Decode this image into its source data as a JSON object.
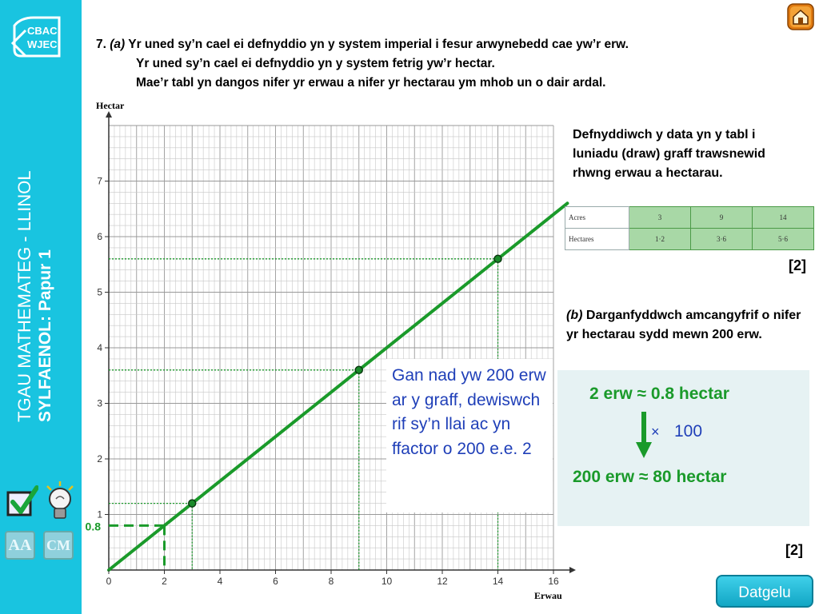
{
  "sidebar": {
    "logo_line1": "CBAC",
    "logo_line2": "WJEC",
    "title": "TGAU MATHEMATEG - LLINOL",
    "subtitle": "SYLFAENOL: Papur 1",
    "icons": [
      "checkbox-tick-icon",
      "lightbulb-icon",
      "aa-icon",
      "cm-icon"
    ],
    "icon_aa": "AA",
    "icon_cm": "CM"
  },
  "question": {
    "number": "7.",
    "part_a": "(a)",
    "line1": "Yr uned sy’n cael ei defnyddio yn y system imperial i fesur arwynebedd cae yw’r erw.",
    "line2": "Yr uned sy’n cael ei defnyddio yn y system fetrig yw’r hectar.",
    "line3": "Mae’r tabl yn dangos nifer yr erwau a nifer yr hectarau ym mhob un o dair ardal."
  },
  "instruction": "Defnyddiwch y data yn y tabl i luniadu (draw) graff trawsnewid rhwng erwau a hectarau.",
  "table": {
    "row1_label": "Acres",
    "row1_values": [
      "3",
      "9",
      "14"
    ],
    "row2_label": "Hectares",
    "row2_values": [
      "1·2",
      "3·6",
      "5·6"
    ]
  },
  "marks_a": "[2]",
  "part_b": {
    "label": "(b)",
    "text": "Darganfyddwch amcangyfrif o nifer yr hectarau sydd mewn 200 erw."
  },
  "note": "Gan nad yw 200 erw ar y graff, dewiswch rif sy’n llai ac yn ffactor o 200 e.e. 2",
  "answer": {
    "line1": "2 erw ≈ 0.8 hectar",
    "multiplier_symbol": "×",
    "multiplier": "100",
    "line2": "200 erw ≈ 80 hectar"
  },
  "marks_b": "[2]",
  "button": "Datgelu",
  "colors": {
    "sidebar": "#19c4e0",
    "line": "#1a9a2a",
    "note_text": "#1f3fb8",
    "answer_panel": "#e6f2f3"
  },
  "chart_data": {
    "type": "line",
    "xlabel": "Erwau",
    "ylabel": "Hectar",
    "xlim": [
      0,
      16
    ],
    "ylim": [
      0,
      8
    ],
    "x_ticks": [
      "0",
      "2",
      "4",
      "6",
      "8",
      "10",
      "12",
      "14",
      "16"
    ],
    "y_ticks": [
      "1",
      "2",
      "3",
      "4",
      "5",
      "6",
      "7"
    ],
    "grid": true,
    "series": [
      {
        "values_x": [
          0,
          16.5
        ],
        "values_y": [
          0,
          6.6
        ]
      }
    ],
    "points": [
      {
        "x": 3,
        "y": 1.2
      },
      {
        "x": 9,
        "y": 3.6
      },
      {
        "x": 14,
        "y": 5.6
      }
    ],
    "reading": {
      "x": 2,
      "y": 0.8,
      "label": "0.8"
    }
  }
}
